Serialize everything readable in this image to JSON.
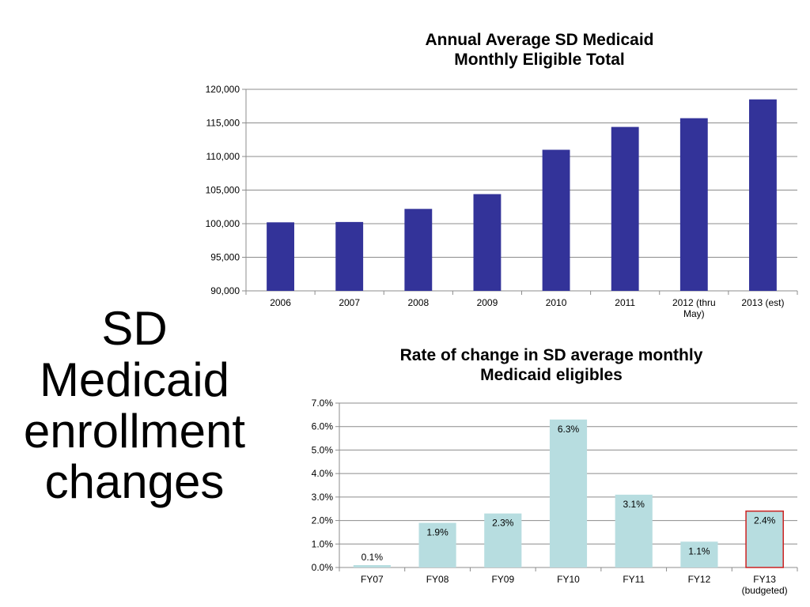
{
  "side_title": {
    "lines": [
      "SD",
      "Medicaid",
      "enrollment",
      "changes"
    ]
  },
  "chart_data": [
    {
      "type": "bar",
      "title_lines": [
        "Annual Average SD Medicaid",
        "Monthly Eligible Total"
      ],
      "categories": [
        "2006",
        "2007",
        "2008",
        "2009",
        "2010",
        "2011",
        "2012 (thru\nMay)",
        "2013 (est)"
      ],
      "values": [
        100200,
        100250,
        102200,
        104400,
        111000,
        114400,
        115700,
        118500
      ],
      "ylim": [
        90000,
        120000
      ],
      "yticks": [
        90000,
        95000,
        100000,
        105000,
        110000,
        115000,
        120000
      ],
      "ytick_labels": [
        "90,000",
        "95,000",
        "100,000",
        "105,000",
        "110,000",
        "115,000",
        "120,000"
      ],
      "xlabel": "",
      "ylabel": "",
      "grid": true,
      "bar_color": "#333399"
    },
    {
      "type": "bar",
      "title_lines": [
        "Rate of change in SD average monthly",
        "Medicaid eligibles"
      ],
      "categories": [
        "FY07",
        "FY08",
        "FY09",
        "FY10",
        "FY11",
        "FY12",
        "FY13\n(budgeted)"
      ],
      "values": [
        0.1,
        1.9,
        2.3,
        6.3,
        3.1,
        1.1,
        2.4
      ],
      "data_labels": [
        "0.1%",
        "1.9%",
        "2.3%",
        "6.3%",
        "3.1%",
        "1.1%",
        "2.4%"
      ],
      "ylim": [
        0,
        7
      ],
      "yticks": [
        0,
        1,
        2,
        3,
        4,
        5,
        6,
        7
      ],
      "ytick_labels": [
        "0.0%",
        "1.0%",
        "2.0%",
        "3.0%",
        "4.0%",
        "5.0%",
        "6.0%",
        "7.0%"
      ],
      "xlabel": "",
      "ylabel": "",
      "grid": true,
      "bar_color": "#b7dde0",
      "highlight_index": 6,
      "highlight_border": "#cc2222"
    }
  ]
}
